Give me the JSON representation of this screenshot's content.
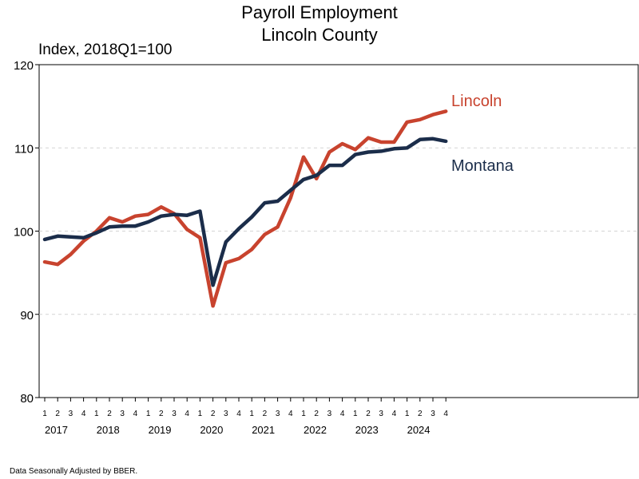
{
  "chart_data": {
    "type": "line",
    "title": "Payroll Employment",
    "subtitle": "Lincoln County",
    "ylabel": "Index, 2018Q1=100",
    "ylim": [
      80,
      120
    ],
    "yticks": [
      80,
      90,
      100,
      110,
      120
    ],
    "grid": true,
    "footnote": "Data Seasonally Adjusted by BBER.",
    "quarter_labels": [
      "1",
      "2",
      "3",
      "4",
      "1",
      "2",
      "3",
      "4",
      "1",
      "2",
      "3",
      "4",
      "1",
      "2",
      "3",
      "4",
      "1",
      "2",
      "3",
      "4",
      "1",
      "2",
      "3",
      "4",
      "1",
      "2",
      "3",
      "4",
      "1",
      "2",
      "3",
      "4"
    ],
    "years": [
      "2017",
      "2018",
      "2019",
      "2020",
      "2021",
      "2022",
      "2023",
      "2024"
    ],
    "series": [
      {
        "name": "Lincoln",
        "color": "#c8432e",
        "values": [
          96.3,
          96.0,
          97.2,
          98.8,
          100.0,
          101.6,
          101.1,
          101.8,
          102.0,
          102.9,
          102.1,
          100.2,
          99.2,
          91.0,
          96.2,
          96.7,
          97.8,
          99.6,
          100.5,
          104.0,
          108.9,
          106.3,
          109.5,
          110.5,
          109.8,
          111.2,
          110.7,
          110.7,
          113.1,
          113.4,
          114.0,
          114.4
        ]
      },
      {
        "name": "Montana",
        "color": "#1b2d4a",
        "values": [
          99.0,
          99.4,
          99.3,
          99.2,
          99.8,
          100.5,
          100.6,
          100.6,
          101.1,
          101.8,
          102.0,
          101.9,
          102.4,
          93.5,
          98.7,
          100.3,
          101.7,
          103.4,
          103.6,
          104.9,
          106.2,
          106.7,
          107.9,
          107.9,
          109.2,
          109.5,
          109.6,
          109.9,
          110.0,
          111.0,
          111.1,
          110.8
        ]
      }
    ]
  }
}
